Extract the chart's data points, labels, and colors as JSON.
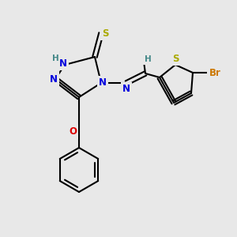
{
  "bg_color": "#e8e8e8",
  "bond_color": "#000000",
  "bond_lw": 1.5,
  "atom_colors": {
    "N": "#0000dd",
    "S": "#aaaa00",
    "O": "#dd0000",
    "Br": "#cc7700",
    "H": "#448888",
    "C": "#000000"
  },
  "font_size": 8.5,
  "font_size_small": 7.5
}
